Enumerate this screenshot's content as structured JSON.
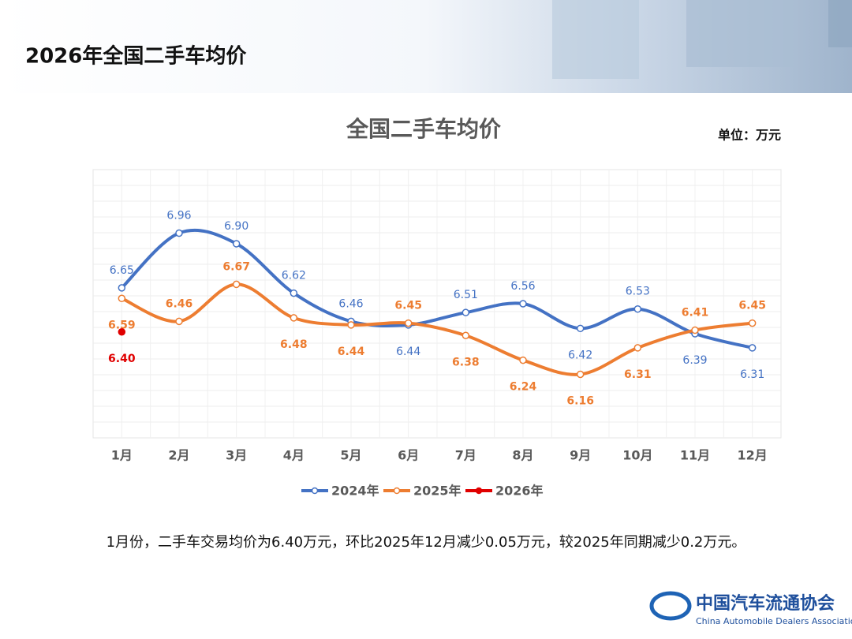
{
  "header": {
    "title": "2026年全国二手车均价"
  },
  "chart_data": {
    "type": "line",
    "title": "全国二手车均价",
    "unit": "单位：万元",
    "categories": [
      "1月",
      "2月",
      "3月",
      "4月",
      "5月",
      "6月",
      "7月",
      "8月",
      "9月",
      "10月",
      "11月",
      "12月"
    ],
    "series": [
      {
        "name": "2024年",
        "color": "#4472c4",
        "values": [
          6.65,
          6.96,
          6.9,
          6.62,
          6.46,
          6.44,
          6.51,
          6.56,
          6.42,
          6.53,
          6.39,
          6.31
        ],
        "value_labels": [
          "6.65",
          "6.96",
          "6.90",
          "6.62",
          "6.46",
          "6.44",
          "6.51",
          "6.56",
          "6.42",
          "6.53",
          "6.39",
          "6.31"
        ]
      },
      {
        "name": "2025年",
        "color": "#ed7d31",
        "values": [
          6.59,
          6.46,
          6.67,
          6.48,
          6.44,
          6.45,
          6.38,
          6.24,
          6.16,
          6.31,
          6.41,
          6.45
        ],
        "value_labels": [
          "6.59",
          "6.46",
          "6.67",
          "6.48",
          "6.44",
          "6.45",
          "6.38",
          "6.24",
          "6.16",
          "6.31",
          "6.41",
          "6.45"
        ]
      },
      {
        "name": "2026年",
        "color": "#e00000",
        "values": [
          6.4,
          null,
          null,
          null,
          null,
          null,
          null,
          null,
          null,
          null,
          null,
          null
        ],
        "value_labels": [
          "6.40",
          null,
          null,
          null,
          null,
          null,
          null,
          null,
          null,
          null,
          null,
          null
        ]
      }
    ],
    "ylim": [
      5.8,
      7.32
    ],
    "legend": "bottom"
  },
  "note": "1月份，二手车交易均价为6.40万元，环比2025年12月减少0.05万元，较2025年同期减少0.2万元。",
  "logo": {
    "name": "中国汽车流通协会",
    "subtitle": "China Automobile Dealers Association"
  }
}
